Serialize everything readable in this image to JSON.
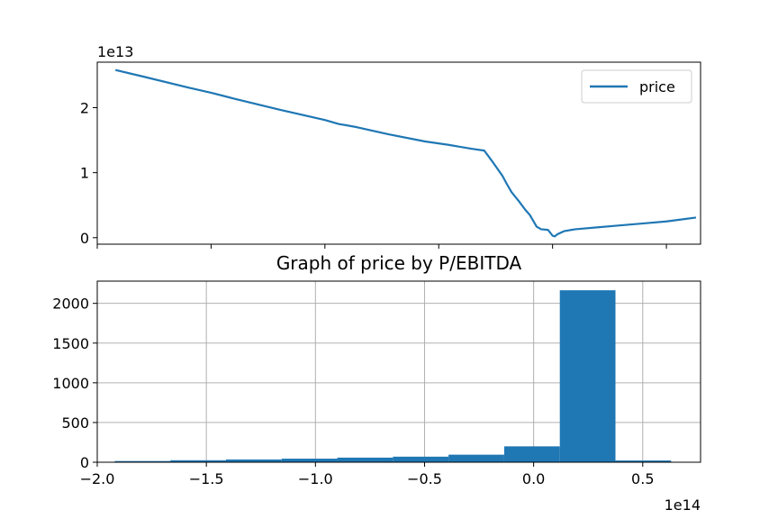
{
  "chart_data": [
    {
      "type": "line",
      "title": "",
      "xlabel": "",
      "ylabel": "",
      "y_offset_text": "1e13",
      "y_scale_exponent": 13,
      "xlim": [
        -2.0,
        0.65
      ],
      "ylim": [
        -0.1,
        2.7
      ],
      "x_scale_exponent": 14,
      "yticks": [
        {
          "value": 0,
          "label": "0"
        },
        {
          "value": 1,
          "label": "1"
        },
        {
          "value": 2,
          "label": "2"
        }
      ],
      "xticks": [
        -2.0,
        -1.5,
        -1.0,
        -0.5,
        0.0,
        0.5
      ],
      "x_tick_labels_shown": false,
      "grid": false,
      "legend_position": "upper right",
      "series": [
        {
          "name": "price",
          "color": "#1f77b4",
          "x": [
            -1.92,
            -1.8,
            -1.6,
            -1.5,
            -1.4,
            -1.2,
            -1.0,
            -0.94,
            -0.86,
            -0.72,
            -0.56,
            -0.46,
            -0.36,
            -0.3,
            -0.26,
            -0.22,
            -0.2,
            -0.18,
            -0.15,
            -0.12,
            -0.1,
            -0.07,
            -0.05,
            -0.02,
            0.0,
            0.01,
            0.02,
            0.05,
            0.1,
            0.2,
            0.3,
            0.4,
            0.5,
            0.63
          ],
          "y": [
            2.58,
            2.48,
            2.31,
            2.23,
            2.14,
            1.97,
            1.81,
            1.75,
            1.7,
            1.59,
            1.48,
            1.43,
            1.37,
            1.34,
            1.15,
            0.95,
            0.82,
            0.7,
            0.57,
            0.43,
            0.35,
            0.17,
            0.13,
            0.12,
            0.03,
            0.02,
            0.05,
            0.1,
            0.13,
            0.16,
            0.19,
            0.22,
            0.25,
            0.31
          ]
        }
      ]
    },
    {
      "type": "bar",
      "title": "Graph of price by P/EBITDA",
      "xlabel": "",
      "ylabel": "",
      "x_offset_text": "1e14",
      "x_scale_exponent": 14,
      "xlim": [
        -2.0,
        0.765
      ],
      "ylim": [
        0,
        2280
      ],
      "grid": true,
      "color": "#1f77b4",
      "xticks": [
        {
          "value": -2.0,
          "label": "−2.0"
        },
        {
          "value": -1.5,
          "label": "−1.5"
        },
        {
          "value": -1.0,
          "label": "−1.0"
        },
        {
          "value": -0.5,
          "label": "−0.5"
        },
        {
          "value": 0.0,
          "label": "0.0"
        },
        {
          "value": 0.5,
          "label": "0.5"
        }
      ],
      "yticks": [
        {
          "value": 0,
          "label": "0"
        },
        {
          "value": 500,
          "label": "500"
        },
        {
          "value": 1000,
          "label": "1000"
        },
        {
          "value": 1500,
          "label": "1500"
        },
        {
          "value": 2000,
          "label": "2000"
        }
      ],
      "bins": [
        -1.92,
        -1.665,
        -1.41,
        -1.155,
        -0.9,
        -0.645,
        -0.39,
        -0.135,
        0.12,
        0.375,
        0.63
      ],
      "counts": [
        15,
        25,
        35,
        45,
        58,
        70,
        95,
        200,
        2165,
        22
      ]
    }
  ]
}
